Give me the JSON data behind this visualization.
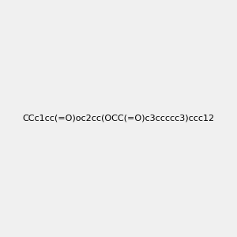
{
  "smiles": "CCc1cc(=O)oc2cc(OCC(=O)c3ccccc3)ccc12",
  "background_color": "#f0f0f0",
  "bond_color": "#000000",
  "oxygen_color": "#ff0000",
  "figsize": [
    3.0,
    3.0
  ],
  "dpi": 100
}
